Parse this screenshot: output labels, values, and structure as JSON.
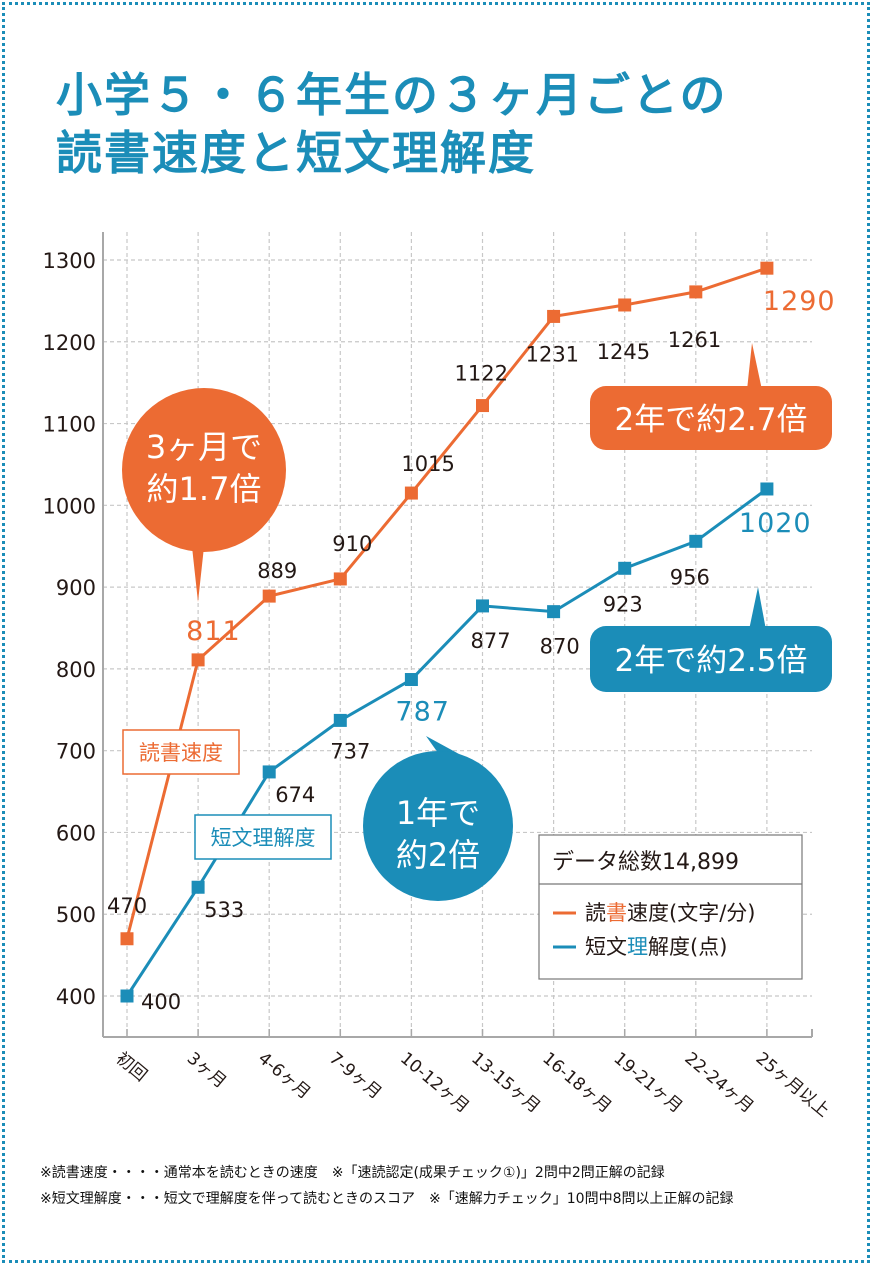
{
  "title": {
    "line1": "小学５・６年生の３ヶ月ごとの",
    "line2": "読書速度と短文理解度"
  },
  "colors": {
    "accent_blue": "#1b8db8",
    "accent_orange": "#ec6b33",
    "grid": "#c8c8c8",
    "axis": "#a8a8a8",
    "text": "#231815"
  },
  "chart_data": {
    "type": "line",
    "title": "小学５・６年生の３ヶ月ごとの読書速度と短文理解度",
    "xlabel": "",
    "ylabel": "",
    "categories": [
      "初回",
      "3ヶ月",
      "4-6ヶ月",
      "7-9ヶ月",
      "10-12ヶ月",
      "13-15ヶ月",
      "16-18ヶ月",
      "19-21ヶ月",
      "22-24ヶ月",
      "25ヶ月以上"
    ],
    "ylim": [
      400,
      1300
    ],
    "yticks": [
      400,
      500,
      600,
      700,
      800,
      900,
      1000,
      1100,
      1200,
      1300
    ],
    "grid": true,
    "legend_position": "bottom-right",
    "series": [
      {
        "name": "読書速度(文字/分)",
        "short_label": "読書速度",
        "color": "#ec6b33",
        "values": [
          470,
          811,
          889,
          910,
          1015,
          1122,
          1231,
          1245,
          1261,
          1290
        ],
        "highlight_indices": [
          1,
          9
        ]
      },
      {
        "name": "短文理解度(点)",
        "short_label": "短文理解度",
        "color": "#1b8db8",
        "values": [
          400,
          533,
          674,
          737,
          787,
          877,
          870,
          923,
          956,
          1020
        ],
        "highlight_indices": [
          4,
          9
        ]
      }
    ],
    "legend": {
      "header": "データ総数14,899",
      "items": [
        {
          "prefix": "読",
          "highlight": "書",
          "suffix": "速度(文字/分)",
          "color": "#ec6b33"
        },
        {
          "prefix": "短文",
          "highlight": "理",
          "suffix": "解度(点)",
          "color": "#1b8db8"
        }
      ]
    },
    "annotations": [
      {
        "text_lines": [
          "3ヶ月で",
          "約1.7倍"
        ],
        "shape": "circle",
        "color": "#ec6b33",
        "series": 0,
        "index": 1
      },
      {
        "text_lines": [
          "2年で約2.7倍"
        ],
        "shape": "rounded-rect",
        "color": "#ec6b33",
        "series": 0,
        "index": 9
      },
      {
        "text_lines": [
          "1年で",
          "約2倍"
        ],
        "shape": "circle",
        "color": "#1b8db8",
        "series": 1,
        "index": 4
      },
      {
        "text_lines": [
          "2年で約2.5倍"
        ],
        "shape": "rounded-rect",
        "color": "#1b8db8",
        "series": 1,
        "index": 9
      }
    ]
  },
  "footnotes": [
    "※読書速度・・・・通常本を読むときの速度　※「速読認定(成果チェック①)」2問中2問正解の記録",
    "※短文理解度・・・短文で理解度を伴って読むときのスコア　※「速解力チェック」10問中8問以上正解の記録"
  ]
}
